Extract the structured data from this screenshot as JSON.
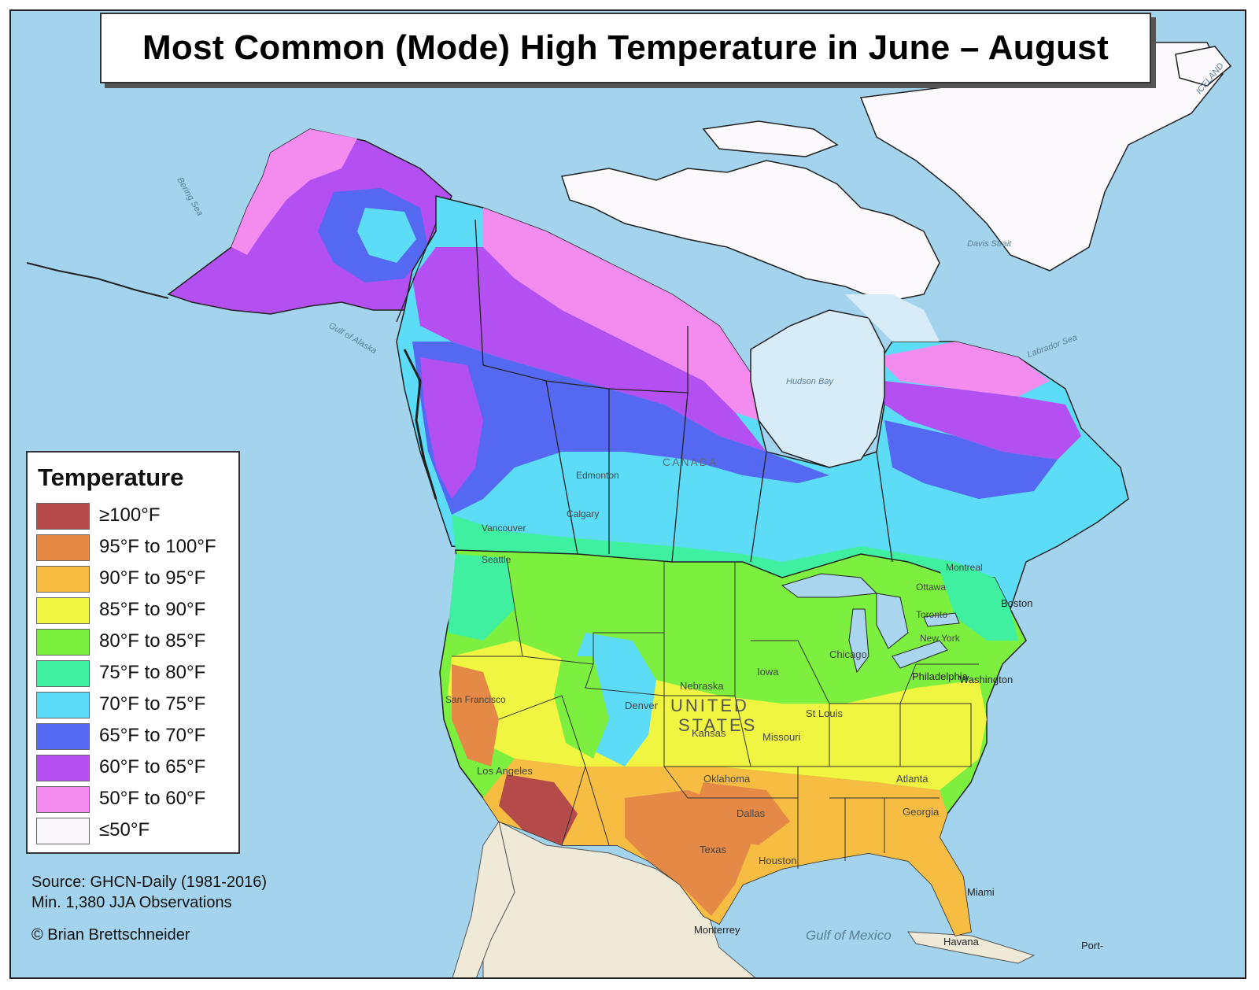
{
  "title": "Most Common (Mode) High Temperature in June – August",
  "legend": {
    "title": "Temperature",
    "items": [
      {
        "label": "≥100°F",
        "color": "#b54a4a"
      },
      {
        "label": "95°F to 100°F",
        "color": "#e58a46"
      },
      {
        "label": "90°F to 95°F",
        "color": "#f6bd42"
      },
      {
        "label": "85°F to 90°F",
        "color": "#f0f542"
      },
      {
        "label": "80°F to 85°F",
        "color": "#7def3e"
      },
      {
        "label": "75°F to 80°F",
        "color": "#3ff0a0"
      },
      {
        "label": "70°F to 75°F",
        "color": "#5cdcf7"
      },
      {
        "label": "65°F to 70°F",
        "color": "#5468f2"
      },
      {
        "label": "60°F to 65°F",
        "color": "#b44ff2"
      },
      {
        "label": "50°F to 60°F",
        "color": "#f48cf0"
      },
      {
        "label": "≤50°F",
        "color": "#faf7fc"
      }
    ]
  },
  "source": {
    "line1": "Source: GHCN-Daily (1981-2016)",
    "line2": "Min. 1,380 JJA Observations"
  },
  "credit": "© Brian Brettschneider",
  "map_labels": {
    "canada": "CANADA",
    "united_states": "UNITED",
    "states": "STATES",
    "hudson_bay": "Hudson Bay",
    "gulf_of_mexico": "Gulf of Mexico",
    "gulf_of_alaska": "Gulf of Alaska",
    "bering_sea": "Bering Sea",
    "labrador_sea": "Labrador Sea",
    "davis_strait": "Davis Strait",
    "iceland": "ICELAND",
    "cities": {
      "edmonton": "Edmonton",
      "calgary": "Calgary",
      "vancouver": "Vancouver",
      "seattle": "Seattle",
      "montreal": "Montreal",
      "ottawa": "Ottawa",
      "toronto": "Toronto",
      "new_york": "New York",
      "boston": "Boston",
      "philadelphia": "Philadelphia",
      "washington": "Washington",
      "chicago": "Chicago",
      "st_louis": "St Louis",
      "denver": "Denver",
      "dallas": "Dallas",
      "houston": "Houston",
      "atlanta": "Atlanta",
      "los_angeles": "Los Angeles",
      "san_francisco": "San Francisco",
      "miami": "Miami",
      "havana": "Havana",
      "monterrey": "Monterrey",
      "kansas": "Kansas",
      "iowa": "Iowa",
      "nebraska": "Nebraska",
      "missouri": "Missouri",
      "oklahoma": "Oklahoma",
      "texas": "Texas",
      "georgia": "Georgia",
      "port": "Port-"
    }
  }
}
